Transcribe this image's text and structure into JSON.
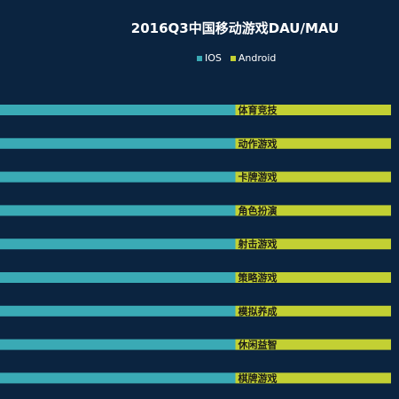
{
  "chart_data": {
    "type": "bar",
    "title": "2016Q3中国移动游戏DAU/MAU",
    "categories": [
      "体育竞技",
      "动作游戏",
      "卡牌游戏",
      "角色扮演",
      "射击游戏",
      "策略游戏",
      "模拟养成",
      "休闲益智",
      "棋牌游戏"
    ],
    "series": [
      {
        "name": "IOS",
        "color": "#3aaab5",
        "values": [
          0.59,
          0.59,
          0.59,
          0.59,
          0.59,
          0.59,
          0.59,
          0.59,
          0.59
        ]
      },
      {
        "name": "Android",
        "color": "#c3d033",
        "values": [
          0.39,
          0.39,
          0.39,
          0.39,
          0.39,
          0.39,
          0.39,
          0.39,
          0.39
        ]
      }
    ],
    "xlim": [
      0,
      1
    ],
    "stacked": true,
    "orientation": "horizontal",
    "legend": "top-center"
  },
  "colors": {
    "background": "#0b2440",
    "label": "#1a1a1a"
  }
}
